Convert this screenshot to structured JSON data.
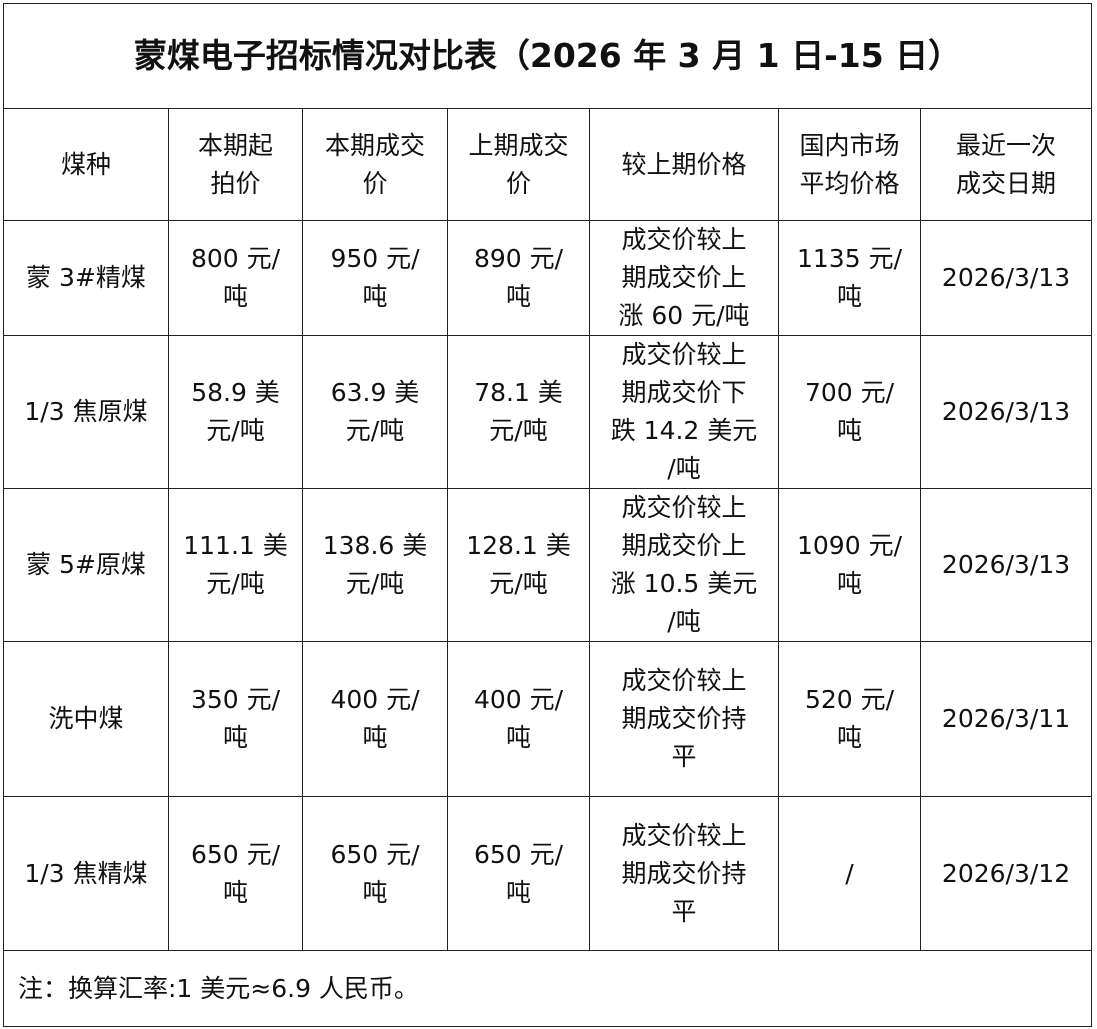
{
  "title": "蒙煤电子招标情况对比表（2026 年 3 月 1 日-15 日）",
  "headers": [
    "煤种",
    "本期起\n拍价",
    "本期成交\n价",
    "上期成交\n价",
    "较上期价格",
    "国内市场\n平均价格",
    "最近一次\n成交日期"
  ],
  "rows": [
    [
      "蒙 3#精煤",
      "800 元/\n吨",
      "950 元/\n吨",
      "890 元/\n吨",
      "成交价较上\n期成交价上\n涨 60 元/吨",
      "1135 元/\n吨",
      "2026/3/13"
    ],
    [
      "1/3 焦原煤",
      "58.9 美\n元/吨",
      "63.9 美\n元/吨",
      "78.1 美\n元/吨",
      "成交价较上\n期成交价下\n跌 14.2 美元\n/吨",
      "700 元/\n吨",
      "2026/3/13"
    ],
    [
      "蒙 5#原煤",
      "111.1 美\n元/吨",
      "138.6 美\n元/吨",
      "128.1 美\n元/吨",
      "成交价较上\n期成交价上\n涨 10.5 美元\n/吨",
      "1090 元/\n吨",
      "2026/3/13"
    ],
    [
      "洗中煤",
      "350 元/\n吨",
      "400 元/\n吨",
      "400 元/\n吨",
      "成交价较上\n期成交价持\n平",
      "520 元/\n吨",
      "2026/3/11"
    ],
    [
      "1/3 焦精煤",
      "650 元/\n吨",
      "650 元/\n吨",
      "650 元/\n吨",
      "成交价较上\n期成交价持\n平",
      "/",
      "2026/3/12"
    ]
  ],
  "note": "注：换算汇率:1 美元≈6.9 人民币。"
}
